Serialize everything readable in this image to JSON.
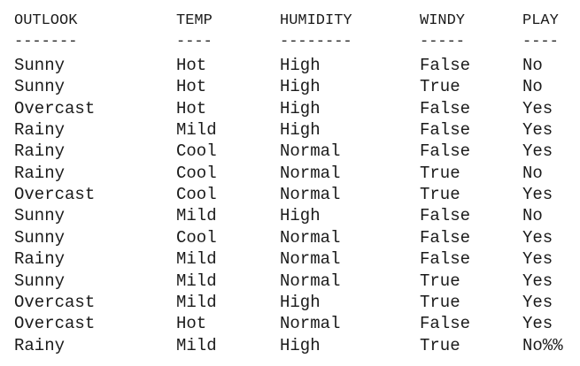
{
  "table": {
    "headers": [
      "OUTLOOK",
      "TEMP",
      "HUMIDITY",
      "WINDY",
      "PLAY"
    ],
    "dashes": [
      "-------",
      "----",
      "--------",
      "-----",
      "----"
    ],
    "rows": [
      [
        "Sunny",
        "Hot",
        "High",
        "False",
        "No"
      ],
      [
        "Sunny",
        "Hot",
        "High",
        "True",
        "No"
      ],
      [
        "Overcast",
        "Hot",
        "High",
        "False",
        "Yes"
      ],
      [
        "Rainy",
        "Mild",
        "High",
        "False",
        "Yes"
      ],
      [
        "Rainy",
        "Cool",
        "Normal",
        "False",
        "Yes"
      ],
      [
        "Rainy",
        "Cool",
        "Normal",
        "True",
        "No"
      ],
      [
        "Overcast",
        "Cool",
        "Normal",
        "True",
        "Yes"
      ],
      [
        "Sunny",
        "Mild",
        "High",
        "False",
        "No"
      ],
      [
        "Sunny",
        "Cool",
        "Normal",
        "False",
        "Yes"
      ],
      [
        "Rainy",
        "Mild",
        "Normal",
        "False",
        "Yes"
      ],
      [
        "Sunny",
        "Mild",
        "Normal",
        "True",
        "Yes"
      ],
      [
        "Overcast",
        "Mild",
        "High",
        "True",
        "Yes"
      ],
      [
        "Overcast",
        "Hot",
        "Normal",
        "False",
        "Yes"
      ],
      [
        "Rainy",
        "Mild",
        "High",
        "True",
        "No%%"
      ]
    ]
  }
}
